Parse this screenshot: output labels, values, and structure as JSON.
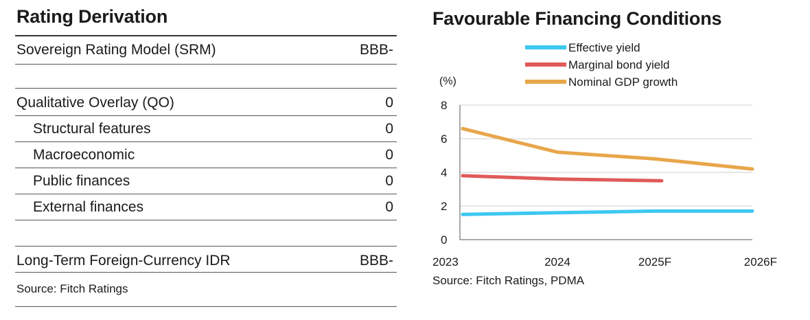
{
  "rating": {
    "title": "Rating Derivation",
    "srm": {
      "label": "Sovereign Rating Model (SRM)",
      "value": "BBB-"
    },
    "qo": {
      "label": "Qualitative Overlay (QO)",
      "value": "0"
    },
    "structural": {
      "label": "Structural features",
      "value": "0"
    },
    "macro": {
      "label": "Macroeconomic",
      "value": "0"
    },
    "public": {
      "label": "Public finances",
      "value": "0"
    },
    "external": {
      "label": "External finances",
      "value": "0"
    },
    "idr": {
      "label": "Long-Term Foreign-Currency IDR",
      "value": "BBB-"
    },
    "source": "Source: Fitch Ratings"
  },
  "chart_data": {
    "type": "line",
    "title": "Favourable Financing Conditions",
    "ylabel": "(%)",
    "xlabel": "",
    "categories": [
      "2023",
      "2024",
      "2025F",
      "2026F"
    ],
    "ylim": [
      0,
      8
    ],
    "yticks": [
      0,
      2,
      4,
      6,
      8
    ],
    "grid": true,
    "legend_position": "top",
    "series": [
      {
        "name": "Effective yield",
        "color": "#3cc8f0",
        "values": [
          1.5,
          1.6,
          1.7,
          1.7
        ]
      },
      {
        "name": "Marginal bond yield",
        "color": "#e05a5a",
        "values": [
          3.8,
          3.6,
          3.5,
          null
        ]
      },
      {
        "name": "Nominal GDP growth",
        "color": "#e8a64a",
        "values": [
          6.6,
          5.2,
          4.8,
          4.2
        ]
      }
    ],
    "source": "Source: Fitch Ratings, PDMA"
  }
}
